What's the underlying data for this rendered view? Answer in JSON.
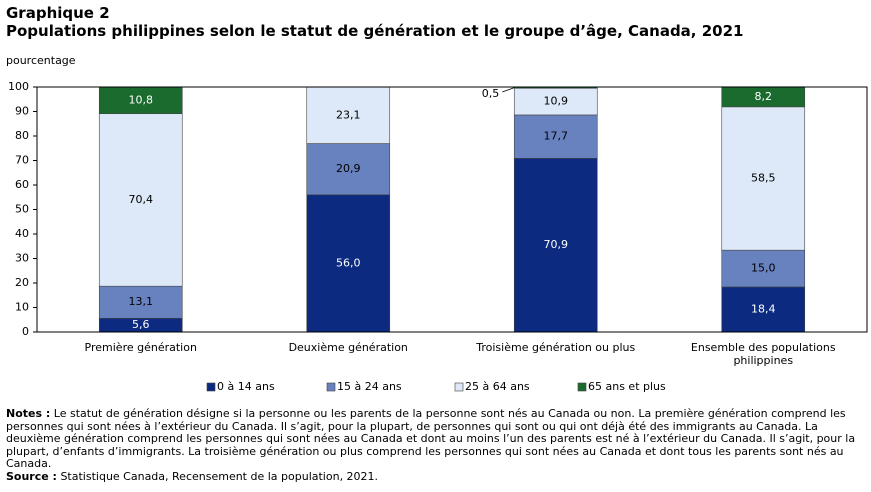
{
  "header": {
    "title": "Graphique 2",
    "subtitle": "Populations philippines selon le statut de génération et le groupe d’âge, Canada, 2021"
  },
  "chart_data": {
    "type": "stacked-bar",
    "y_label": "pourcentage",
    "categories": [
      "Première génération",
      "Deuxième génération",
      "Troisième génération ou plus",
      "Ensemble des populations philippines"
    ],
    "series": [
      {
        "name": "0 à 14 ans",
        "color": "#0b2a80",
        "values": [
          5.6,
          56.0,
          70.9,
          18.4
        ],
        "value_labels": [
          "5,6",
          "56,0",
          "70,9",
          "18,4"
        ]
      },
      {
        "name": "15 à 24 ans",
        "color": "#6882bf",
        "values": [
          13.1,
          20.9,
          17.7,
          15.0
        ],
        "value_labels": [
          "13,1",
          "20,9",
          "17,7",
          "15,0"
        ]
      },
      {
        "name": "25 à 64 ans",
        "color": "#dde9f8",
        "values": [
          70.4,
          23.1,
          10.9,
          58.5
        ],
        "value_labels": [
          "70,4",
          "23,1",
          "10,9",
          "58,5"
        ]
      },
      {
        "name": "65 ans et plus",
        "color": "#1b6b2e",
        "values": [
          10.8,
          null,
          0.5,
          8.2
        ],
        "value_labels": [
          "10,8",
          null,
          "0,5",
          "8,2"
        ]
      }
    ],
    "ylim": [
      0,
      100
    ],
    "yticks": [
      0,
      10,
      20,
      30,
      40,
      50,
      60,
      70,
      80,
      90,
      100
    ],
    "grid": false,
    "legend": "bottom"
  },
  "notes": {
    "label": "Notes :",
    "text": "Le statut de génération désigne si la personne ou les parents de la personne sont nés au Canada ou non. La première génération comprend les personnes qui sont nées à l’extérieur du Canada. Il s’agit, pour la plupart, de personnes qui sont ou qui ont déjà été des immigrants au Canada. La deuxième génération comprend les personnes qui sont nées au Canada et dont au moins l’un des parents est né à l’extérieur du Canada. Il s’agit, pour la plupart, d’enfants d’immigrants. La troisième génération ou plus comprend les personnes qui sont nées au Canada et dont tous les parents sont nés au Canada."
  },
  "source": {
    "label": "Source :",
    "text": "Statistique Canada, Recensement de la population, 2021."
  }
}
